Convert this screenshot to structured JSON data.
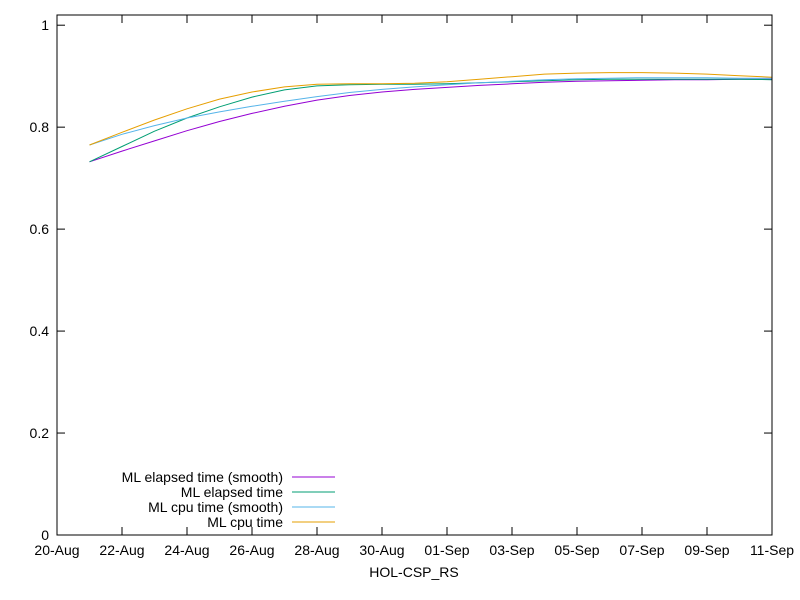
{
  "chart_data": {
    "type": "line",
    "xlabel": "HOL-CSP_RS",
    "ylabel": "",
    "ylim": [
      0,
      1.02
    ],
    "xlim": [
      "2020-08-20",
      "2020-09-11"
    ],
    "x_ticks": [
      {
        "date": "2020-08-20",
        "label": "20-Aug"
      },
      {
        "date": "2020-08-22",
        "label": "22-Aug"
      },
      {
        "date": "2020-08-24",
        "label": "24-Aug"
      },
      {
        "date": "2020-08-26",
        "label": "26-Aug"
      },
      {
        "date": "2020-08-28",
        "label": "28-Aug"
      },
      {
        "date": "2020-08-30",
        "label": "30-Aug"
      },
      {
        "date": "2020-09-01",
        "label": "01-Sep"
      },
      {
        "date": "2020-09-03",
        "label": "03-Sep"
      },
      {
        "date": "2020-09-05",
        "label": "05-Sep"
      },
      {
        "date": "2020-09-07",
        "label": "07-Sep"
      },
      {
        "date": "2020-09-09",
        "label": "09-Sep"
      },
      {
        "date": "2020-09-11",
        "label": "11-Sep"
      }
    ],
    "y_ticks": [
      {
        "value": 0,
        "label": "0"
      },
      {
        "value": 0.2,
        "label": "0.2"
      },
      {
        "value": 0.4,
        "label": "0.4"
      },
      {
        "value": 0.6,
        "label": "0.6"
      },
      {
        "value": 0.8,
        "label": "0.8"
      },
      {
        "value": 1,
        "label": "1"
      }
    ],
    "grid": false,
    "legend_position": "bottom-left",
    "series": [
      {
        "name": "ML elapsed time (smooth)",
        "color": "#9400d3",
        "points": [
          [
            "2020-08-21",
            0.732
          ],
          [
            "2020-08-22",
            0.753
          ],
          [
            "2020-08-23",
            0.773
          ],
          [
            "2020-08-24",
            0.793
          ],
          [
            "2020-08-25",
            0.811
          ],
          [
            "2020-08-26",
            0.827
          ],
          [
            "2020-08-27",
            0.841
          ],
          [
            "2020-08-28",
            0.853
          ],
          [
            "2020-08-29",
            0.862
          ],
          [
            "2020-08-30",
            0.869
          ],
          [
            "2020-08-31",
            0.874
          ],
          [
            "2020-09-01",
            0.878
          ],
          [
            "2020-09-02",
            0.882
          ],
          [
            "2020-09-03",
            0.885
          ],
          [
            "2020-09-04",
            0.888
          ],
          [
            "2020-09-05",
            0.89
          ],
          [
            "2020-09-06",
            0.891
          ],
          [
            "2020-09-07",
            0.892
          ],
          [
            "2020-09-08",
            0.893
          ],
          [
            "2020-09-09",
            0.893
          ],
          [
            "2020-09-10",
            0.894
          ],
          [
            "2020-09-11",
            0.894
          ]
        ]
      },
      {
        "name": "ML elapsed time",
        "color": "#009e73",
        "points": [
          [
            "2020-08-21",
            0.732
          ],
          [
            "2020-08-22",
            0.762
          ],
          [
            "2020-08-23",
            0.792
          ],
          [
            "2020-08-24",
            0.818
          ],
          [
            "2020-08-25",
            0.84
          ],
          [
            "2020-08-26",
            0.859
          ],
          [
            "2020-08-27",
            0.873
          ],
          [
            "2020-08-28",
            0.881
          ],
          [
            "2020-08-29",
            0.883
          ],
          [
            "2020-08-30",
            0.884
          ],
          [
            "2020-08-31",
            0.884
          ],
          [
            "2020-09-01",
            0.885
          ],
          [
            "2020-09-02",
            0.887
          ],
          [
            "2020-09-03",
            0.889
          ],
          [
            "2020-09-04",
            0.891
          ],
          [
            "2020-09-05",
            0.893
          ],
          [
            "2020-09-06",
            0.894
          ],
          [
            "2020-09-07",
            0.894
          ],
          [
            "2020-09-08",
            0.894
          ],
          [
            "2020-09-09",
            0.894
          ],
          [
            "2020-09-10",
            0.894
          ],
          [
            "2020-09-11",
            0.893
          ]
        ]
      },
      {
        "name": "ML cpu time (smooth)",
        "color": "#56b4e9",
        "points": [
          [
            "2020-08-21",
            0.765
          ],
          [
            "2020-08-22",
            0.786
          ],
          [
            "2020-08-23",
            0.803
          ],
          [
            "2020-08-24",
            0.818
          ],
          [
            "2020-08-25",
            0.83
          ],
          [
            "2020-08-26",
            0.841
          ],
          [
            "2020-08-27",
            0.851
          ],
          [
            "2020-08-28",
            0.86
          ],
          [
            "2020-08-29",
            0.868
          ],
          [
            "2020-08-30",
            0.874
          ],
          [
            "2020-08-31",
            0.879
          ],
          [
            "2020-09-01",
            0.883
          ],
          [
            "2020-09-02",
            0.887
          ],
          [
            "2020-09-03",
            0.89
          ],
          [
            "2020-09-04",
            0.893
          ],
          [
            "2020-09-05",
            0.895
          ],
          [
            "2020-09-06",
            0.896
          ],
          [
            "2020-09-07",
            0.897
          ],
          [
            "2020-09-08",
            0.897
          ],
          [
            "2020-09-09",
            0.897
          ],
          [
            "2020-09-10",
            0.896
          ],
          [
            "2020-09-11",
            0.896
          ]
        ]
      },
      {
        "name": "ML cpu time",
        "color": "#e69f00",
        "points": [
          [
            "2020-08-21",
            0.765
          ],
          [
            "2020-08-22",
            0.79
          ],
          [
            "2020-08-23",
            0.814
          ],
          [
            "2020-08-24",
            0.836
          ],
          [
            "2020-08-25",
            0.855
          ],
          [
            "2020-08-26",
            0.869
          ],
          [
            "2020-08-27",
            0.879
          ],
          [
            "2020-08-28",
            0.884
          ],
          [
            "2020-08-29",
            0.885
          ],
          [
            "2020-08-30",
            0.885
          ],
          [
            "2020-08-31",
            0.886
          ],
          [
            "2020-09-01",
            0.889
          ],
          [
            "2020-09-02",
            0.894
          ],
          [
            "2020-09-03",
            0.899
          ],
          [
            "2020-09-04",
            0.904
          ],
          [
            "2020-09-05",
            0.906
          ],
          [
            "2020-09-06",
            0.907
          ],
          [
            "2020-09-07",
            0.907
          ],
          [
            "2020-09-08",
            0.906
          ],
          [
            "2020-09-09",
            0.904
          ],
          [
            "2020-09-10",
            0.901
          ],
          [
            "2020-09-11",
            0.898
          ]
        ]
      }
    ]
  }
}
